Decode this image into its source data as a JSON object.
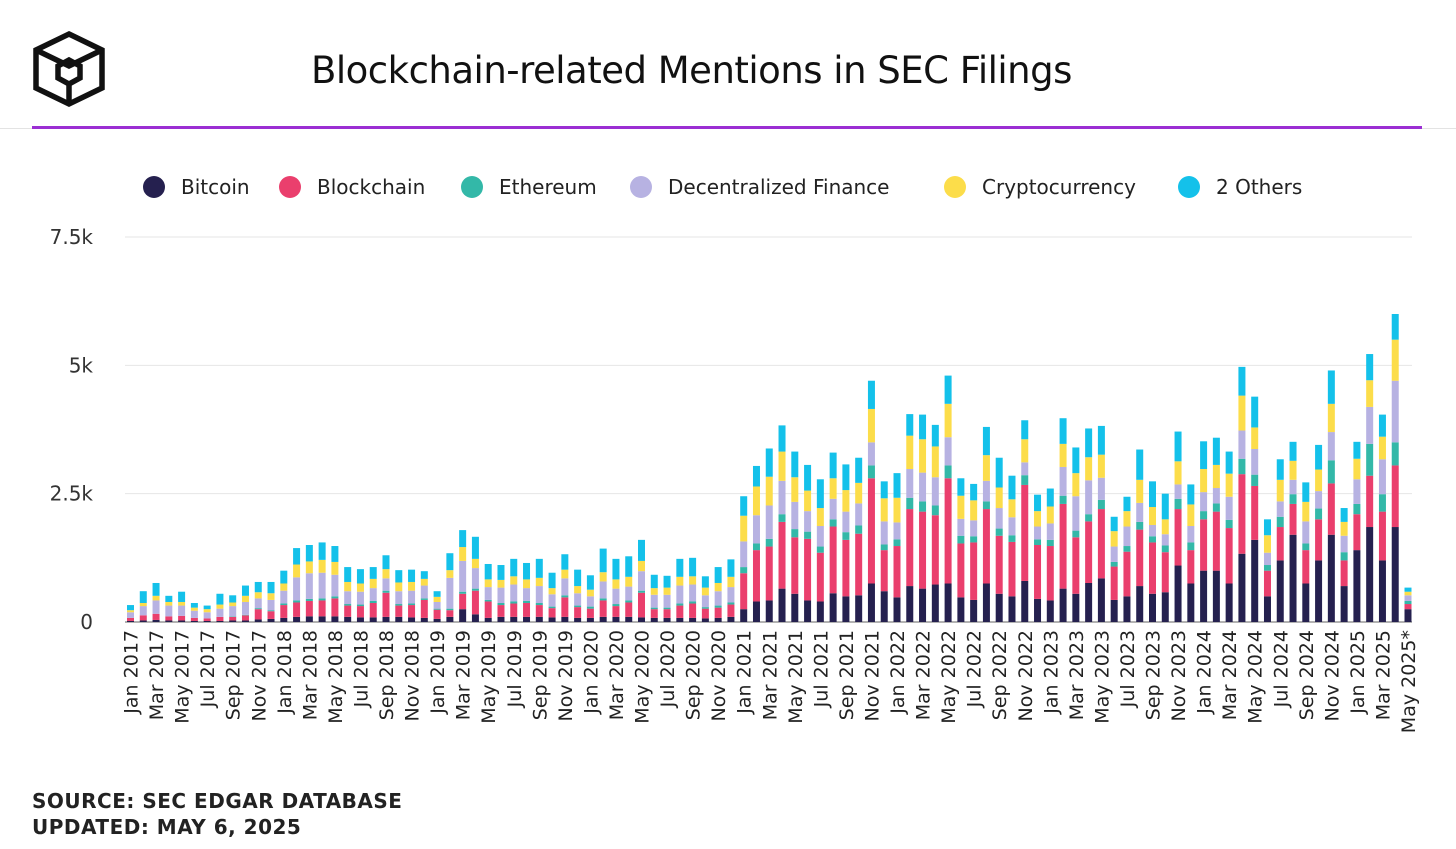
{
  "chart_data": {
    "type": "bar",
    "stacked": true,
    "title": "Blockchain-related Mentions in SEC Filings",
    "xlabel": "",
    "ylabel": "",
    "ylim": [
      0,
      7500
    ],
    "yticks": [
      0,
      2500,
      5000,
      7500
    ],
    "ytick_labels": [
      "0",
      "2.5k",
      "5k",
      "7.5k"
    ],
    "grid": true,
    "legend_position": "top",
    "categories": [
      "Jan 2017",
      "Feb 2017",
      "Mar 2017",
      "Apr 2017",
      "May 2017",
      "Jun 2017",
      "Jul 2017",
      "Aug 2017",
      "Sep 2017",
      "Oct 2017",
      "Nov 2017",
      "Dec 2017",
      "Jan 2018",
      "Feb 2018",
      "Mar 2018",
      "Apr 2018",
      "May 2018",
      "Jun 2018",
      "Jul 2018",
      "Aug 2018",
      "Sep 2018",
      "Oct 2018",
      "Nov 2018",
      "Dec 2018",
      "Jan 2019",
      "Feb 2019",
      "Mar 2019",
      "Apr 2019",
      "May 2019",
      "Jun 2019",
      "Jul 2019",
      "Aug 2019",
      "Sep 2019",
      "Oct 2019",
      "Nov 2019",
      "Dec 2019",
      "Jan 2020",
      "Feb 2020",
      "Mar 2020",
      "Apr 2020",
      "May 2020",
      "Jun 2020",
      "Jul 2020",
      "Aug 2020",
      "Sep 2020",
      "Oct 2020",
      "Nov 2020",
      "Dec 2020",
      "Jan 2021",
      "Feb 2021",
      "Mar 2021",
      "Apr 2021",
      "May 2021",
      "Jun 2021",
      "Jul 2021",
      "Aug 2021",
      "Sep 2021",
      "Oct 2021",
      "Nov 2021",
      "Dec 2021",
      "Jan 2022",
      "Feb 2022",
      "Mar 2022",
      "Apr 2022",
      "May 2022",
      "Jun 2022",
      "Jul 2022",
      "Aug 2022",
      "Sep 2022",
      "Oct 2022",
      "Nov 2022",
      "Dec 2022",
      "Jan 2023",
      "Feb 2023",
      "Mar 2023",
      "Apr 2023",
      "May 2023",
      "Jun 2023",
      "Jul 2023",
      "Aug 2023",
      "Sep 2023",
      "Oct 2023",
      "Nov 2023",
      "Dec 2023",
      "Jan 2024",
      "Feb 2024",
      "Mar 2024",
      "Apr 2024",
      "May 2024",
      "Jun 2024",
      "Jul 2024",
      "Aug 2024",
      "Sep 2024",
      "Oct 2024",
      "Nov 2024",
      "Dec 2024",
      "Jan 2025",
      "Feb 2025",
      "Mar 2025",
      "Apr 2025",
      "May 2025*"
    ],
    "xtick_labels": [
      "Jan 2017",
      "Mar 2017",
      "May 2017",
      "Jul 2017",
      "Sep 2017",
      "Nov 2017",
      "Jan 2018",
      "Mar 2018",
      "May 2018",
      "Jul 2018",
      "Sep 2018",
      "Nov 2018",
      "Jan 2019",
      "Mar 2019",
      "May 2019",
      "Jul 2019",
      "Sep 2019",
      "Nov 2019",
      "Jan 2020",
      "Mar 2020",
      "May 2020",
      "Jul 2020",
      "Sep 2020",
      "Nov 2020",
      "Jan 2021",
      "Mar 2021",
      "May 2021",
      "Jul 2021",
      "Sep 2021",
      "Nov 2021",
      "Jan 2022",
      "Mar 2022",
      "May 2022",
      "Jul 2022",
      "Sep 2022",
      "Nov 2022",
      "Jan 2023",
      "Mar 2023",
      "May 2023",
      "Jul 2023",
      "Sep 2023",
      "Nov 2023",
      "Jan 2024",
      "Mar 2024",
      "May 2024",
      "Jul 2024",
      "Sep 2024",
      "Nov 2024",
      "Jan 2025",
      "Mar 2025",
      "May 2025*"
    ],
    "series": [
      {
        "name": "Bitcoin",
        "color": "#25204f",
        "values": [
          20,
          30,
          40,
          30,
          30,
          20,
          20,
          20,
          30,
          30,
          50,
          60,
          80,
          100,
          110,
          110,
          110,
          100,
          90,
          90,
          100,
          100,
          90,
          80,
          60,
          100,
          250,
          150,
          80,
          100,
          100,
          100,
          100,
          90,
          100,
          80,
          80,
          100,
          100,
          100,
          90,
          80,
          80,
          80,
          80,
          70,
          80,
          100,
          250,
          400,
          420,
          650,
          550,
          420,
          400,
          560,
          500,
          520,
          750,
          600,
          480,
          700,
          650,
          730,
          750,
          480,
          430,
          750,
          550,
          500,
          800,
          450,
          420,
          650,
          550,
          760,
          850,
          430,
          500,
          700,
          550,
          580,
          1100,
          750,
          1000,
          1000,
          750,
          1330,
          1600,
          500,
          1200,
          1700,
          750,
          1200,
          1700,
          700,
          1400,
          1850,
          1200,
          1850,
          250
        ]
      },
      {
        "name": "Blockchain",
        "color": "#ea3f6d",
        "values": [
          60,
          100,
          120,
          80,
          90,
          60,
          50,
          80,
          70,
          100,
          200,
          150,
          250,
          280,
          300,
          310,
          350,
          220,
          220,
          280,
          470,
          220,
          240,
          350,
          180,
          130,
          300,
          460,
          320,
          230,
          260,
          270,
          230,
          180,
          380,
          210,
          180,
          320,
          210,
          280,
          480,
          170,
          170,
          240,
          280,
          190,
          200,
          240,
          700,
          1000,
          1050,
          1300,
          1100,
          1200,
          950,
          1300,
          1100,
          1200,
          2050,
          800,
          1000,
          1500,
          1500,
          1350,
          2050,
          1050,
          1120,
          1450,
          1130,
          1060,
          1870,
          1050,
          1060,
          1650,
          1100,
          1200,
          1350,
          650,
          870,
          1100,
          1000,
          780,
          1100,
          650,
          1000,
          1150,
          1080,
          1550,
          1050,
          500,
          650,
          600,
          650,
          800,
          1000,
          500,
          700,
          1000,
          950,
          1200,
          100
        ]
      },
      {
        "name": "Ethereum",
        "color": "#33b8a8",
        "values": [
          0,
          0,
          0,
          0,
          0,
          0,
          0,
          0,
          10,
          10,
          20,
          20,
          30,
          40,
          40,
          40,
          40,
          30,
          30,
          40,
          40,
          30,
          30,
          30,
          20,
          30,
          40,
          40,
          30,
          40,
          40,
          40,
          40,
          30,
          40,
          30,
          40,
          40,
          40,
          40,
          40,
          30,
          30,
          40,
          40,
          30,
          40,
          40,
          120,
          130,
          150,
          150,
          160,
          140,
          120,
          140,
          150,
          160,
          250,
          110,
          130,
          220,
          200,
          190,
          250,
          150,
          120,
          150,
          140,
          130,
          190,
          110,
          120,
          160,
          130,
          140,
          180,
          90,
          110,
          150,
          120,
          130,
          200,
          150,
          160,
          160,
          160,
          300,
          220,
          110,
          200,
          190,
          130,
          210,
          450,
          160,
          200,
          620,
          340,
          450,
          60
        ]
      },
      {
        "name": "Decentralized Finance",
        "color": "#b7b2e2",
        "values": [
          110,
          180,
          260,
          210,
          200,
          140,
          120,
          160,
          200,
          250,
          190,
          200,
          250,
          450,
          500,
          500,
          420,
          250,
          250,
          250,
          240,
          250,
          250,
          250,
          130,
          600,
          600,
          400,
          250,
          300,
          330,
          250,
          330,
          240,
          330,
          240,
          200,
          330,
          300,
          270,
          380,
          250,
          250,
          350,
          330,
          230,
          280,
          300,
          500,
          550,
          650,
          650,
          530,
          400,
          400,
          400,
          400,
          430,
          450,
          450,
          330,
          560,
          560,
          550,
          550,
          330,
          310,
          400,
          400,
          350,
          250,
          250,
          320,
          560,
          670,
          660,
          430,
          300,
          380,
          370,
          220,
          220,
          280,
          320,
          370,
          300,
          450,
          550,
          500,
          240,
          300,
          280,
          430,
          340,
          550,
          320,
          480,
          720,
          680,
          1200,
          110
        ]
      },
      {
        "name": "Cryptocurrency",
        "color": "#fcdd4a",
        "values": [
          40,
          60,
          90,
          70,
          70,
          60,
          60,
          80,
          70,
          120,
          120,
          130,
          140,
          250,
          230,
          250,
          250,
          180,
          160,
          180,
          180,
          170,
          170,
          130,
          100,
          150,
          270,
          180,
          150,
          150,
          160,
          170,
          160,
          120,
          170,
          140,
          130,
          180,
          180,
          190,
          200,
          130,
          140,
          170,
          160,
          150,
          160,
          200,
          500,
          560,
          560,
          570,
          480,
          400,
          350,
          400,
          420,
          400,
          650,
          450,
          480,
          650,
          650,
          600,
          650,
          450,
          390,
          500,
          400,
          350,
          450,
          300,
          330,
          450,
          450,
          450,
          450,
          300,
          300,
          450,
          350,
          290,
          450,
          420,
          450,
          450,
          450,
          680,
          420,
          340,
          420,
          370,
          380,
          420,
          550,
          270,
          400,
          520,
          440,
          800,
          70
        ]
      },
      {
        "name": "2 Others",
        "color": "#14c1ea",
        "values": [
          100,
          230,
          250,
          120,
          200,
          90,
          70,
          210,
          140,
          200,
          200,
          220,
          250,
          320,
          320,
          340,
          310,
          290,
          280,
          230,
          270,
          240,
          240,
          150,
          110,
          330,
          330,
          430,
          300,
          290,
          340,
          320,
          370,
          300,
          300,
          320,
          280,
          460,
          400,
          400,
          410,
          260,
          230,
          350,
          360,
          220,
          310,
          340,
          380,
          400,
          550,
          510,
          500,
          500,
          560,
          500,
          500,
          490,
          550,
          330,
          480,
          420,
          480,
          420,
          550,
          340,
          320,
          550,
          580,
          460,
          370,
          320,
          350,
          500,
          500,
          560,
          560,
          280,
          280,
          590,
          500,
          500,
          580,
          390,
          540,
          530,
          430,
          560,
          600,
          310,
          400,
          370,
          380,
          480,
          650,
          270,
          330,
          510,
          430,
          500,
          80
        ]
      }
    ]
  }
}
